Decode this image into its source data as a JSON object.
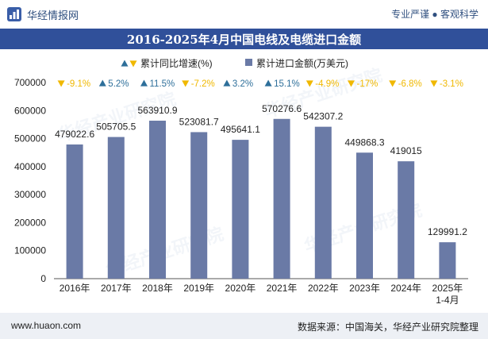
{
  "header": {
    "site_name": "华经情报网",
    "tagline": "专业严谨 ● 客观科学",
    "logo_icon": "chart-logo-icon"
  },
  "title": "2016-2025年4月中国电线及电缆进口金额",
  "footer": {
    "url": "www.huaon.com",
    "source": "数据来源：中国海关，华经产业研究院整理"
  },
  "watermarks": [
    "华经产业研究院",
    "华经产业研究院",
    "华经产业研究院",
    "华经产业研究院"
  ],
  "chart_data": {
    "type": "bar",
    "categories": [
      "2016年",
      "2017年",
      "2018年",
      "2019年",
      "2020年",
      "2021年",
      "2022年",
      "2023年",
      "2024年",
      "2025年\n1-4月"
    ],
    "series": [
      {
        "name": "累计进口金额(万美元)",
        "values": [
          479022.6,
          505705.5,
          563910.9,
          523081.7,
          495641.1,
          570276.6,
          542307.2,
          449868.3,
          419015,
          129991.2
        ],
        "value_labels": [
          "479022.6",
          "505705.5",
          "563910.9",
          "523081.7",
          "495641.1",
          "570276.6",
          "542307.2",
          "449868.3",
          "419015",
          "129991.2"
        ],
        "color": "#6a7aa6"
      },
      {
        "name": "累计同比增速(%)",
        "values": [
          -9.1,
          5.2,
          11.5,
          -7.2,
          3.2,
          15.1,
          -4.9,
          -17,
          -6.8,
          -3.1
        ],
        "value_labels": [
          "-9.1%",
          "5.2%",
          "11.5%",
          "-7.2%",
          "3.2%",
          "15.1%",
          "-4.9%",
          "-17%",
          "-6.8%",
          "-3.1%"
        ],
        "up_color": "#2e6f9a",
        "down_color": "#f0b800"
      }
    ],
    "ylim": [
      0,
      700000
    ],
    "yticks": [
      "0",
      "100000",
      "200000",
      "300000",
      "400000",
      "500000",
      "600000",
      "700000"
    ],
    "ytick_values": [
      0,
      100000,
      200000,
      300000,
      400000,
      500000,
      600000,
      700000
    ],
    "legend_position": "top-center",
    "grid": false
  }
}
